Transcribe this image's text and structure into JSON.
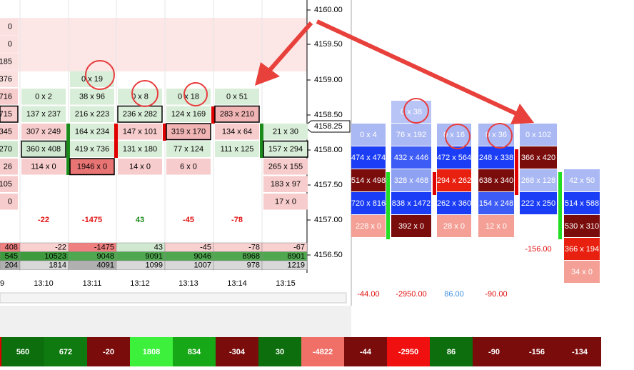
{
  "price_axis": {
    "labels": [
      "4160.00",
      "4159.50",
      "4159.00",
      "4158.50",
      "4158.00",
      "4157.50",
      "4157.00",
      "4156.50"
    ],
    "current": "4158.25"
  },
  "footprint": {
    "columns": [
      [
        {
          "t": "0",
          "c": "#fbe0e0"
        },
        {
          "t": "0",
          "c": "#fbe0e0"
        },
        {
          "t": "185",
          "c": "#fbe0e0"
        },
        {
          "t": "376",
          "c": "#fbe0e0"
        },
        {
          "t": "716",
          "c": "#f7cccc"
        },
        {
          "t": "715",
          "c": "#f7cccc",
          "b": true
        },
        {
          "t": "345",
          "c": "#f7cccc"
        },
        {
          "t": "270",
          "c": "#cfe8cf"
        },
        {
          "t": "26",
          "c": "#f7cccc"
        },
        {
          "t": "105",
          "c": "#f7cccc"
        },
        {
          "t": "0",
          "c": "#f7cccc"
        }
      ],
      [
        null,
        null,
        null,
        null,
        {
          "t": "0 x 2",
          "c": "#d9eed9"
        },
        {
          "t": "137 x 237",
          "c": "#d9eed9"
        },
        {
          "t": "307 x 249",
          "c": "#f7cccc"
        },
        {
          "t": "360 x 408",
          "c": "#cfe8cf",
          "b": true
        },
        {
          "t": "114 x 0",
          "c": "#f7cccc"
        },
        null,
        null
      ],
      [
        null,
        null,
        null,
        {
          "t": "0 x 19",
          "c": "#d9eed9"
        },
        {
          "t": "38 x 96",
          "c": "#d9eed9"
        },
        {
          "t": "216 x 223",
          "c": "#d9eed9"
        },
        {
          "t": "164 x 234",
          "c": "#d9eed9"
        },
        {
          "t": "419 x 736",
          "c": "#d9eed9"
        },
        {
          "t": "1946 x 0",
          "c": "#e87474",
          "b": true
        },
        null,
        null
      ],
      [
        null,
        null,
        null,
        null,
        {
          "t": "0 x 8",
          "c": "#d9eed9"
        },
        {
          "t": "236 x 282",
          "c": "#d9eed9",
          "b": true
        },
        {
          "t": "147 x 101",
          "c": "#f7cccc"
        },
        {
          "t": "131 x 180",
          "c": "#d9eed9"
        },
        {
          "t": "14 x 0",
          "c": "#f7cccc"
        },
        null,
        null
      ],
      [
        null,
        null,
        null,
        null,
        {
          "t": "0 x 18",
          "c": "#d9eed9"
        },
        {
          "t": "124 x 169",
          "c": "#d9eed9"
        },
        {
          "t": "319 x 170",
          "c": "#f0b4b4",
          "b": true
        },
        {
          "t": "77 x 124",
          "c": "#d9eed9"
        },
        {
          "t": "6 x 0",
          "c": "#f7cccc"
        },
        null,
        null
      ],
      [
        null,
        null,
        null,
        null,
        {
          "t": "0 x 51",
          "c": "#d9eed9"
        },
        {
          "t": "283 x 210",
          "c": "#f0b4b4",
          "b": true
        },
        {
          "t": "134 x 64",
          "c": "#f7cccc"
        },
        {
          "t": "111 x 125",
          "c": "#d9eed9"
        },
        null,
        null,
        null
      ],
      [
        null,
        null,
        null,
        null,
        null,
        null,
        {
          "t": "21 x 30",
          "c": "#d9eed9"
        },
        {
          "t": "157 x 294",
          "c": "#d9eed9",
          "b": true
        },
        {
          "t": "265 x 155",
          "c": "#f7cccc"
        },
        {
          "t": "183 x 97",
          "c": "#f7cccc"
        },
        {
          "t": "17 x 0",
          "c": "#f7cccc"
        }
      ]
    ],
    "deltas": [
      null,
      {
        "t": "-22",
        "c": "#e01010"
      },
      {
        "t": "-1475",
        "c": "#e01010"
      },
      {
        "t": "43",
        "c": "#1a8a1a"
      },
      {
        "t": "-45",
        "c": "#e01010"
      },
      {
        "t": "-78",
        "c": "#e01010"
      },
      null
    ],
    "summary": [
      [
        {
          "t": "408",
          "c": "#f08080"
        },
        {
          "t": "-22",
          "c": "#f9d0d0"
        },
        {
          "t": "-1475",
          "c": "#f08080"
        },
        {
          "t": "43",
          "c": "#cfe8cf"
        },
        {
          "t": "-45",
          "c": "#f9d0d0"
        },
        {
          "t": "-78",
          "c": "#f9d0d0"
        },
        {
          "t": "-67",
          "c": "#f9d0d0"
        }
      ],
      [
        {
          "t": "545",
          "c": "#3d9a3d"
        },
        {
          "t": "10523",
          "c": "#3d9a3d"
        },
        {
          "t": "9048",
          "c": "#4fa84f"
        },
        {
          "t": "9091",
          "c": "#4fa84f"
        },
        {
          "t": "9046",
          "c": "#4fa84f"
        },
        {
          "t": "8968",
          "c": "#4fa84f"
        },
        {
          "t": "8901",
          "c": "#4fa84f"
        }
      ],
      [
        {
          "t": "204",
          "c": "#b0b0b0"
        },
        {
          "t": "1814",
          "c": "#d8d8d8"
        },
        {
          "t": "4091",
          "c": "#b0b0b0"
        },
        {
          "t": "1099",
          "c": "#d8d8d8"
        },
        {
          "t": "1007",
          "c": "#d8d8d8"
        },
        {
          "t": "978",
          "c": "#d8d8d8"
        },
        {
          "t": "1219",
          "c": "#d8d8d8"
        }
      ]
    ],
    "times": [
      "9",
      "13:10",
      "13:11",
      "13:12",
      "13:13",
      "13:14",
      "13:15"
    ]
  },
  "right_panel": {
    "columns": [
      [
        null,
        {
          "t": "0 x 4",
          "c": "#aab8f4"
        },
        {
          "t": "474 x 474",
          "c": "#1b3df5"
        },
        {
          "t": "514 x 498",
          "c": "#7a0c0c"
        },
        {
          "t": "720 x 816",
          "c": "#1b3df5"
        },
        {
          "t": "228 x 0",
          "c": "#f4a096"
        },
        null,
        null
      ],
      [
        {
          "t": "0 x 38",
          "c": "#b8c4f6"
        },
        {
          "t": "76 x 192",
          "c": "#aab8f4"
        },
        {
          "t": "432 x 446",
          "c": "#3d5cf6"
        },
        {
          "t": "328 x 468",
          "c": "#8fa2f2"
        },
        {
          "t": "838 x 1472",
          "c": "#1b3df5"
        },
        {
          "t": "392 x 0",
          "c": "#7a0c0c"
        },
        null,
        null
      ],
      [
        null,
        {
          "t": "0 x 16",
          "c": "#aab8f4"
        },
        {
          "t": "472 x 564",
          "c": "#1b3df5"
        },
        {
          "t": "294 x 262",
          "c": "#e8200f"
        },
        {
          "t": "262 x 360",
          "c": "#1b3df5"
        },
        {
          "t": "28 x 0",
          "c": "#f4a096"
        },
        null,
        null
      ],
      [
        null,
        {
          "t": "0 x 36",
          "c": "#aab8f4"
        },
        {
          "t": "248 x 338",
          "c": "#1b3df5"
        },
        {
          "t": "638 x 340",
          "c": "#7a0c0c"
        },
        {
          "t": "154 x 248",
          "c": "#3d5cf6"
        },
        {
          "t": "12 x 0",
          "c": "#f4a096"
        },
        null,
        null
      ],
      [
        null,
        {
          "t": "0 x 102",
          "c": "#aab8f4"
        },
        {
          "t": "366 x 420",
          "c": "#7a0c0c"
        },
        {
          "t": "268 x 128",
          "c": "#aab8f4"
        },
        {
          "t": "222 x 250",
          "c": "#1b3df5"
        },
        null,
        {
          "t": "-156.00",
          "c": "none"
        },
        null
      ],
      [
        null,
        null,
        null,
        {
          "t": "42 x 50",
          "c": "#aab8f4"
        },
        {
          "t": "514 x 588",
          "c": "#1b3df5"
        },
        {
          "t": "530 x 310",
          "c": "#7a0c0c"
        },
        {
          "t": "366 x 194",
          "c": "#e8200f"
        },
        {
          "t": "34 x 0",
          "c": "#f4a096"
        }
      ]
    ],
    "deltas": [
      {
        "t": "-44.00",
        "c": "#e01010"
      },
      {
        "t": "-2950.00",
        "c": "#e01010"
      },
      {
        "t": "86.00",
        "c": "#3a8ee0"
      },
      {
        "t": "-90.00",
        "c": "#e01010"
      },
      null,
      null
    ]
  },
  "bottom_bar": [
    {
      "t": "560",
      "c": "#0d6e0d"
    },
    {
      "t": "672",
      "c": "#0f7a0f"
    },
    {
      "t": "-20",
      "c": "#7a0c0c"
    },
    {
      "t": "1808",
      "c": "#3cf03c"
    },
    {
      "t": "834",
      "c": "#17a817"
    },
    {
      "t": "-304",
      "c": "#7a0c0c"
    },
    {
      "t": "30",
      "c": "#0d6e0d"
    },
    {
      "t": "-4822",
      "c": "#f07068"
    },
    {
      "t": "-44",
      "c": "#7a0c0c"
    },
    {
      "t": "-2950",
      "c": "#f01010"
    },
    {
      "t": "86",
      "c": "#0d6e0d"
    },
    {
      "t": "-90",
      "c": "#7a0c0c"
    },
    {
      "t": "-156",
      "c": "#7a0c0c"
    },
    {
      "t": "-134",
      "c": "#7a0c0c"
    }
  ]
}
